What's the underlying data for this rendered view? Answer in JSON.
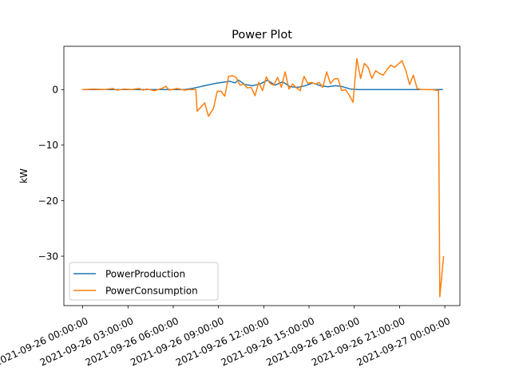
{
  "chart_data": {
    "type": "line",
    "title": "Power Plot",
    "xlabel": "",
    "ylabel": "kW",
    "xlim": [
      "2021-09-25 22:45:00",
      "2021-09-27 01:00:00"
    ],
    "ylim": [
      -38.9,
      7.8
    ],
    "grid": false,
    "legend_position": "lower-left",
    "x_ticks": [
      "2021-09-26 00:00:00",
      "2021-09-26 03:00:00",
      "2021-09-26 06:00:00",
      "2021-09-26 09:00:00",
      "2021-09-26 12:00:00",
      "2021-09-26 15:00:00",
      "2021-09-26 18:00:00",
      "2021-09-26 21:00:00",
      "2021-09-27 00:00:00"
    ],
    "y_ticks": [
      0,
      -10,
      -20,
      -30
    ],
    "series": [
      {
        "name": "PowerProduction",
        "color": "#1f77b4",
        "points": [
          [
            "2021-09-26 00:00",
            0.0
          ],
          [
            "2021-09-26 01:00",
            0.0
          ],
          [
            "2021-09-26 02:00",
            0.0
          ],
          [
            "2021-09-26 03:00",
            0.0
          ],
          [
            "2021-09-26 04:00",
            0.0
          ],
          [
            "2021-09-26 05:00",
            0.0
          ],
          [
            "2021-09-26 06:00",
            0.0
          ],
          [
            "2021-09-26 06:45",
            0.0
          ],
          [
            "2021-09-26 07:15",
            0.2
          ],
          [
            "2021-09-26 07:45",
            0.5
          ],
          [
            "2021-09-26 08:15",
            0.8
          ],
          [
            "2021-09-26 08:45",
            1.1
          ],
          [
            "2021-09-26 09:15",
            1.3
          ],
          [
            "2021-09-26 09:45",
            1.5
          ],
          [
            "2021-09-26 10:05",
            1.2
          ],
          [
            "2021-09-26 10:20",
            1.7
          ],
          [
            "2021-09-26 10:45",
            0.9
          ],
          [
            "2021-09-26 11:15",
            0.7
          ],
          [
            "2021-09-26 11:45",
            1.0
          ],
          [
            "2021-09-26 12:15",
            1.7
          ],
          [
            "2021-09-26 12:45",
            0.8
          ],
          [
            "2021-09-26 13:15",
            1.4
          ],
          [
            "2021-09-26 13:45",
            0.5
          ],
          [
            "2021-09-26 14:15",
            0.4
          ],
          [
            "2021-09-26 14:45",
            0.7
          ],
          [
            "2021-09-26 15:15",
            1.2
          ],
          [
            "2021-09-26 15:45",
            0.7
          ],
          [
            "2021-09-26 16:15",
            0.5
          ],
          [
            "2021-09-26 16:45",
            0.7
          ],
          [
            "2021-09-26 17:15",
            0.5
          ],
          [
            "2021-09-26 17:45",
            0.1
          ],
          [
            "2021-09-26 18:15",
            0.0
          ],
          [
            "2021-09-26 19:00",
            0.0
          ],
          [
            "2021-09-26 20:00",
            0.0
          ],
          [
            "2021-09-26 21:00",
            0.0
          ],
          [
            "2021-09-26 22:00",
            0.0
          ],
          [
            "2021-09-26 23:00",
            0.0
          ],
          [
            "2021-09-26 23:50",
            0.0
          ]
        ]
      },
      {
        "name": "PowerConsumption",
        "color": "#ff7f0e",
        "points": [
          [
            "2021-09-26 00:00",
            0.0
          ],
          [
            "2021-09-26 00:45",
            0.1
          ],
          [
            "2021-09-26 01:30",
            0.0
          ],
          [
            "2021-09-26 02:00",
            0.2
          ],
          [
            "2021-09-26 02:15",
            -0.1
          ],
          [
            "2021-09-26 02:45",
            0.1
          ],
          [
            "2021-09-26 03:15",
            0.0
          ],
          [
            "2021-09-26 03:45",
            0.2
          ],
          [
            "2021-09-26 04:00",
            -0.1
          ],
          [
            "2021-09-26 04:15",
            0.1
          ],
          [
            "2021-09-26 04:45",
            -0.2
          ],
          [
            "2021-09-26 05:15",
            0.2
          ],
          [
            "2021-09-26 05:30",
            0.6
          ],
          [
            "2021-09-26 05:45",
            -0.1
          ],
          [
            "2021-09-26 06:15",
            0.2
          ],
          [
            "2021-09-26 06:45",
            -0.1
          ],
          [
            "2021-09-26 07:00",
            0.0
          ],
          [
            "2021-09-26 07:30",
            0.0
          ],
          [
            "2021-09-26 07:35",
            -3.9
          ],
          [
            "2021-09-26 08:05",
            -2.4
          ],
          [
            "2021-09-26 08:20",
            -4.8
          ],
          [
            "2021-09-26 08:40",
            -3.4
          ],
          [
            "2021-09-26 08:55",
            -0.3
          ],
          [
            "2021-09-26 09:10",
            -0.3
          ],
          [
            "2021-09-26 09:25",
            -1.2
          ],
          [
            "2021-09-26 09:40",
            2.4
          ],
          [
            "2021-09-26 09:55",
            2.5
          ],
          [
            "2021-09-26 10:10",
            2.2
          ],
          [
            "2021-09-26 10:25",
            0.8
          ],
          [
            "2021-09-26 10:40",
            1.0
          ],
          [
            "2021-09-26 10:55",
            0.3
          ],
          [
            "2021-09-26 11:10",
            0.4
          ],
          [
            "2021-09-26 11:25",
            -1.1
          ],
          [
            "2021-09-26 11:40",
            1.3
          ],
          [
            "2021-09-26 11:55",
            -0.2
          ],
          [
            "2021-09-26 12:10",
            2.3
          ],
          [
            "2021-09-26 12:25",
            1.1
          ],
          [
            "2021-09-26 12:40",
            0.8
          ],
          [
            "2021-09-26 12:55",
            2.2
          ],
          [
            "2021-09-26 13:10",
            0.4
          ],
          [
            "2021-09-26 13:25",
            3.2
          ],
          [
            "2021-09-26 13:40",
            0.1
          ],
          [
            "2021-09-26 13:55",
            1.0
          ],
          [
            "2021-09-26 14:10",
            0.3
          ],
          [
            "2021-09-26 14:25",
            -0.2
          ],
          [
            "2021-09-26 14:40",
            2.4
          ],
          [
            "2021-09-26 14:55",
            1.1
          ],
          [
            "2021-09-26 15:10",
            1.3
          ],
          [
            "2021-09-26 15:25",
            1.0
          ],
          [
            "2021-09-26 15:40",
            1.3
          ],
          [
            "2021-09-26 15:55",
            0.4
          ],
          [
            "2021-09-26 16:10",
            3.2
          ],
          [
            "2021-09-26 16:25",
            1.1
          ],
          [
            "2021-09-26 16:40",
            1.9
          ],
          [
            "2021-09-26 16:55",
            2.0
          ],
          [
            "2021-09-26 17:10",
            -0.2
          ],
          [
            "2021-09-26 17:25",
            0.0
          ],
          [
            "2021-09-26 17:40",
            -1.0
          ],
          [
            "2021-09-26 17:55",
            -2.3
          ],
          [
            "2021-09-26 18:10",
            5.6
          ],
          [
            "2021-09-26 18:25",
            2.0
          ],
          [
            "2021-09-26 18:40",
            4.7
          ],
          [
            "2021-09-26 18:55",
            4.0
          ],
          [
            "2021-09-26 19:10",
            2.0
          ],
          [
            "2021-09-26 19:25",
            3.4
          ],
          [
            "2021-09-26 19:40",
            2.9
          ],
          [
            "2021-09-26 19:55",
            2.6
          ],
          [
            "2021-09-26 20:10",
            3.6
          ],
          [
            "2021-09-26 20:25",
            4.4
          ],
          [
            "2021-09-26 20:40",
            4.0
          ],
          [
            "2021-09-26 20:55",
            4.6
          ],
          [
            "2021-09-26 21:10",
            5.2
          ],
          [
            "2021-09-26 21:25",
            3.4
          ],
          [
            "2021-09-26 21:40",
            0.9
          ],
          [
            "2021-09-26 21:55",
            2.6
          ],
          [
            "2021-09-26 22:10",
            0.2
          ],
          [
            "2021-09-26 22:25",
            0.0
          ],
          [
            "2021-09-26 22:55",
            0.0
          ],
          [
            "2021-09-26 23:10",
            0.0
          ],
          [
            "2021-09-26 23:35",
            -0.2
          ],
          [
            "2021-09-26 23:40",
            -37.3
          ],
          [
            "2021-09-26 23:55",
            -30.1
          ]
        ]
      }
    ]
  }
}
